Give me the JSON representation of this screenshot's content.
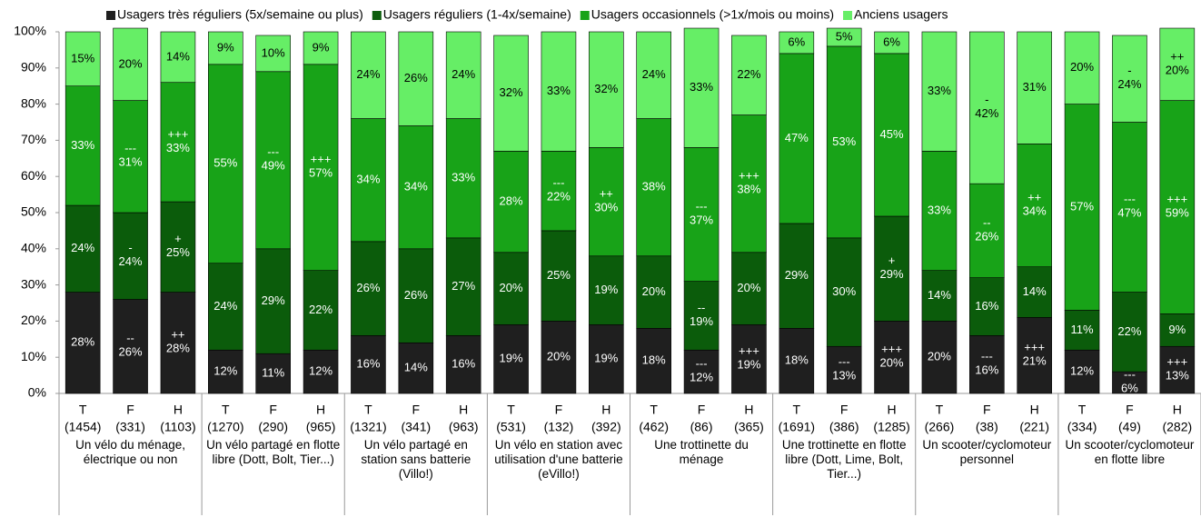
{
  "chart_data": {
    "type": "stacked_bar",
    "groups": [
      "Un vélo du ménage, électrique ou non",
      "Un vélo partagé en flotte libre (Dott, Bolt, Tier...)",
      "Un vélo partagé en station sans batterie (Villo!)",
      "Un vélo en station avec utilisation d'une batterie (eVillo!)",
      "Une trottinette du ménage",
      "Une trottinette en flotte libre (Dott, Lime, Bolt, Tier...)",
      "Un scooter/cyclomoteur personnel",
      "Un scooter/cyclomoteur en flotte libre"
    ],
    "categories": [
      "T",
      "F",
      "H",
      "T",
      "F",
      "H",
      "T",
      "F",
      "H",
      "T",
      "F",
      "H",
      "T",
      "F",
      "H",
      "T",
      "F",
      "H",
      "T",
      "F",
      "H",
      "T",
      "F",
      "H"
    ],
    "counts": [
      "(1454)",
      "(331)",
      "(1103)",
      "(1270)",
      "(290)",
      "(965)",
      "(1321)",
      "(341)",
      "(963)",
      "(531)",
      "(132)",
      "(392)",
      "(462)",
      "(86)",
      "(365)",
      "(1691)",
      "(386)",
      "(1285)",
      "(266)",
      "(38)",
      "(221)",
      "(334)",
      "(49)",
      "(282)"
    ],
    "series": [
      {
        "name": "Usagers très réguliers (5x/semaine ou plus)",
        "color": "#1f1f1f",
        "values": [
          28,
          26,
          28,
          12,
          11,
          12,
          16,
          14,
          16,
          19,
          20,
          19,
          18,
          12,
          19,
          18,
          13,
          20,
          20,
          16,
          21,
          12,
          6,
          13
        ],
        "value_labels": [
          "28%",
          "26%",
          "28%",
          "12%",
          "11%",
          "12%",
          "16%",
          "14%",
          "16%",
          "19%",
          "20%",
          "19%",
          "18%",
          "12%",
          "19%",
          "18%",
          "13%",
          "20%",
          "20%",
          "16%",
          "21%",
          "12%",
          "6%",
          "13%"
        ],
        "significance": [
          null,
          "--",
          "++",
          null,
          null,
          null,
          null,
          null,
          null,
          null,
          null,
          null,
          null,
          "---",
          "+++",
          null,
          "---",
          "+++",
          null,
          "---",
          "+++",
          null,
          "---",
          "+++"
        ]
      },
      {
        "name": "Usagers réguliers (1-4x/semaine)",
        "color": "#0b5c0b",
        "values": [
          24,
          24,
          25,
          24,
          29,
          22,
          26,
          26,
          27,
          20,
          25,
          19,
          20,
          19,
          20,
          29,
          30,
          29,
          14,
          16,
          14,
          11,
          22,
          9
        ],
        "value_labels": [
          "24%",
          "24%",
          "25%",
          "24%",
          "29%",
          "22%",
          "26%",
          "26%",
          "27%",
          "20%",
          "25%",
          "19%",
          "20%",
          "19%",
          "20%",
          "29%",
          "30%",
          "29%",
          "14%",
          "16%",
          "14%",
          "11%",
          "22%",
          "9%"
        ],
        "significance": [
          null,
          "-",
          "+",
          null,
          null,
          null,
          null,
          null,
          null,
          null,
          null,
          null,
          null,
          "--",
          null,
          null,
          null,
          "+",
          null,
          null,
          null,
          null,
          null,
          null
        ]
      },
      {
        "name": "Usagers occasionnels (>1x/mois ou moins)",
        "color": "#18a318",
        "values": [
          33,
          31,
          33,
          55,
          49,
          57,
          34,
          34,
          33,
          28,
          22,
          30,
          38,
          37,
          38,
          47,
          53,
          45,
          33,
          26,
          34,
          57,
          47,
          59
        ],
        "value_labels": [
          "33%",
          "31%",
          "33%",
          "55%",
          "49%",
          "57%",
          "34%",
          "34%",
          "33%",
          "28%",
          "22%",
          "30%",
          "38%",
          "37%",
          "38%",
          "47%",
          "53%",
          "45%",
          "33%",
          "26%",
          "34%",
          "57%",
          "47%",
          "59%"
        ],
        "significance": [
          null,
          "---",
          "+++",
          null,
          "---",
          "+++",
          null,
          null,
          null,
          null,
          "---",
          "++",
          null,
          "---",
          "+++",
          null,
          null,
          null,
          null,
          "--",
          "++",
          null,
          "---",
          "+++"
        ]
      },
      {
        "name": "Anciens usagers",
        "color": "#66ee66",
        "values": [
          15,
          20,
          14,
          9,
          10,
          9,
          24,
          26,
          24,
          32,
          33,
          32,
          24,
          33,
          22,
          6,
          5,
          6,
          33,
          42,
          31,
          20,
          24,
          20
        ],
        "value_labels": [
          "15%",
          "20%",
          "14%",
          "9%",
          "10%",
          "9%",
          "24%",
          "26%",
          "24%",
          "32%",
          "33%",
          "32%",
          "24%",
          "33%",
          "22%",
          "6%",
          "5%",
          "6%",
          "33%",
          "42%",
          "31%",
          "20%",
          "24%",
          "20%"
        ],
        "significance": [
          null,
          null,
          null,
          null,
          null,
          null,
          null,
          null,
          null,
          null,
          null,
          null,
          null,
          null,
          null,
          null,
          null,
          null,
          null,
          "-",
          null,
          null,
          "-",
          "++"
        ]
      }
    ],
    "ylim": [
      0,
      100
    ],
    "yticks": [
      {
        "value": 0,
        "label": "0%"
      },
      {
        "value": 10,
        "label": "10%"
      },
      {
        "value": 20,
        "label": "20%"
      },
      {
        "value": 30,
        "label": "30%"
      },
      {
        "value": 40,
        "label": "40%"
      },
      {
        "value": 50,
        "label": "50%"
      },
      {
        "value": 60,
        "label": "60%"
      },
      {
        "value": 70,
        "label": "70%"
      },
      {
        "value": 80,
        "label": "80%"
      },
      {
        "value": 90,
        "label": "90%"
      },
      {
        "value": 100,
        "label": "100%"
      }
    ],
    "legend": "top"
  }
}
